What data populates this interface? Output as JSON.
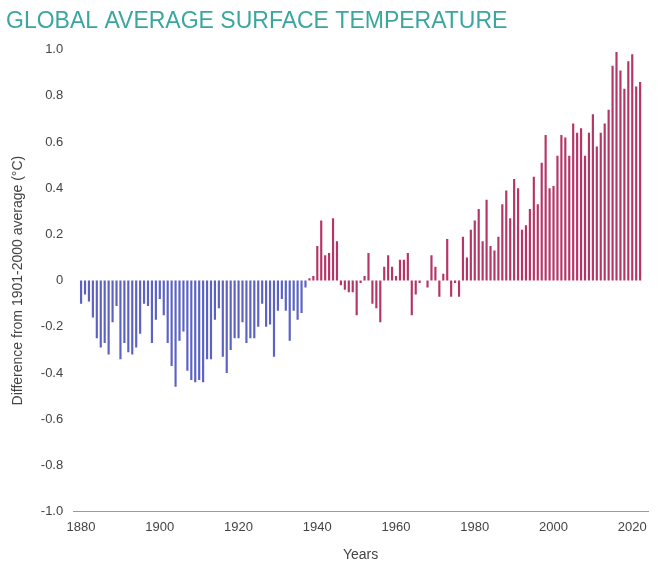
{
  "chart_data": {
    "type": "bar",
    "title": "GLOBAL AVERAGE SURFACE TEMPERATURE",
    "x_label": "Years",
    "y_label": "Difference from 1901-2000 average (°C)",
    "x": [
      1880,
      1881,
      1882,
      1883,
      1884,
      1885,
      1886,
      1887,
      1888,
      1889,
      1890,
      1891,
      1892,
      1893,
      1894,
      1895,
      1896,
      1897,
      1898,
      1899,
      1900,
      1901,
      1902,
      1903,
      1904,
      1905,
      1906,
      1907,
      1908,
      1909,
      1910,
      1911,
      1912,
      1913,
      1914,
      1915,
      1916,
      1917,
      1918,
      1919,
      1920,
      1921,
      1922,
      1923,
      1924,
      1925,
      1926,
      1927,
      1928,
      1929,
      1930,
      1931,
      1932,
      1933,
      1934,
      1935,
      1936,
      1937,
      1938,
      1939,
      1940,
      1941,
      1942,
      1943,
      1944,
      1945,
      1946,
      1947,
      1948,
      1949,
      1950,
      1951,
      1952,
      1953,
      1954,
      1955,
      1956,
      1957,
      1958,
      1959,
      1960,
      1961,
      1962,
      1963,
      1964,
      1965,
      1966,
      1967,
      1968,
      1969,
      1970,
      1971,
      1972,
      1973,
      1974,
      1975,
      1976,
      1977,
      1978,
      1979,
      1980,
      1981,
      1982,
      1983,
      1984,
      1985,
      1986,
      1987,
      1988,
      1989,
      1990,
      1991,
      1992,
      1993,
      1994,
      1995,
      1996,
      1997,
      1998,
      1999,
      2000,
      2001,
      2002,
      2003,
      2004,
      2005,
      2006,
      2007,
      2008,
      2009,
      2010,
      2011,
      2012,
      2013,
      2014,
      2015,
      2016,
      2017,
      2018,
      2019,
      2020,
      2021,
      2022
    ],
    "values": [
      -0.1,
      -0.06,
      -0.09,
      -0.16,
      -0.25,
      -0.29,
      -0.27,
      -0.32,
      -0.18,
      -0.11,
      -0.34,
      -0.27,
      -0.31,
      -0.32,
      -0.29,
      -0.23,
      -0.1,
      -0.11,
      -0.27,
      -0.17,
      -0.08,
      -0.15,
      -0.27,
      -0.37,
      -0.46,
      -0.26,
      -0.22,
      -0.39,
      -0.43,
      -0.44,
      -0.43,
      -0.44,
      -0.34,
      -0.34,
      -0.17,
      -0.12,
      -0.33,
      -0.4,
      -0.3,
      -0.25,
      -0.25,
      -0.18,
      -0.27,
      -0.25,
      -0.25,
      -0.2,
      -0.1,
      -0.2,
      -0.19,
      -0.33,
      -0.13,
      -0.08,
      -0.13,
      -0.26,
      -0.13,
      -0.17,
      -0.14,
      -0.03,
      0.01,
      0.02,
      0.15,
      0.26,
      0.11,
      0.12,
      0.27,
      0.17,
      -0.02,
      -0.04,
      -0.05,
      -0.05,
      -0.15,
      -0.01,
      0.02,
      0.12,
      -0.1,
      -0.12,
      -0.18,
      0.06,
      0.11,
      0.06,
      0.02,
      0.09,
      0.09,
      0.12,
      -0.15,
      -0.06,
      -0.01,
      0,
      -0.03,
      0.11,
      0.06,
      -0.07,
      0.03,
      0.18,
      -0.07,
      -0.01,
      -0.07,
      0.19,
      0.1,
      0.22,
      0.26,
      0.31,
      0.17,
      0.35,
      0.15,
      0.13,
      0.19,
      0.33,
      0.39,
      0.27,
      0.44,
      0.4,
      0.22,
      0.24,
      0.31,
      0.45,
      0.33,
      0.51,
      0.63,
      0.4,
      0.41,
      0.54,
      0.63,
      0.62,
      0.54,
      0.68,
      0.64,
      0.66,
      0.54,
      0.64,
      0.72,
      0.58,
      0.64,
      0.68,
      0.74,
      0.93,
      0.99,
      0.91,
      0.83,
      0.95,
      0.98,
      0.84,
      0.86
    ],
    "colors": [
      "#5b62c4",
      "#5b62c4",
      "#5b62c4",
      "#5b62c4",
      "#5b62c4",
      "#5b62c4",
      "#5b62c4",
      "#5b62c4",
      "#5b62c4",
      "#5b62c4",
      "#5b62c4",
      "#5b62c4",
      "#5b62c4",
      "#5b62c4",
      "#5b62c4",
      "#5b62c4",
      "#5b62c4",
      "#5b62c4",
      "#5b62c4",
      "#5b62c4",
      "#5b62c4",
      "#5b62c4",
      "#5b62c4",
      "#5b62c4",
      "#5b62c4",
      "#5b62c4",
      "#5b62c4",
      "#5b62c4",
      "#5b62c4",
      "#5b62c4",
      "#5b62c4",
      "#5b62c4",
      "#5b62c4",
      "#5b62c4",
      "#5b62c4",
      "#5b62c4",
      "#5b62c4",
      "#5b62c4",
      "#5b62c4",
      "#5b62c4",
      "#5b62c4",
      "#5b62c4",
      "#5b62c4",
      "#5b62c4",
      "#5b62c4",
      "#5b62c4",
      "#5b62c4",
      "#5b62c4",
      "#5b62c4",
      "#5b62c4",
      "#5b62c4",
      "#5b62c4",
      "#5b62c4",
      "#5b62c4",
      "#5b62c4",
      "#5b62c4",
      "#5b62c4",
      "#5b62c4",
      "#b53567",
      "#b53567",
      "#b53567",
      "#b53567",
      "#b53567",
      "#b53567",
      "#b53567",
      "#b53567",
      "#b53567",
      "#b53567",
      "#b53567",
      "#b53567",
      "#b53567",
      "#b53567",
      "#b53567",
      "#b53567",
      "#b53567",
      "#b53567",
      "#b53567",
      "#b53567",
      "#b53567",
      "#b53567",
      "#b53567",
      "#b53567",
      "#b53567",
      "#b53567",
      "#b53567",
      "#b53567",
      "#b53567",
      "#b53567",
      "#b53567",
      "#b53567",
      "#b53567",
      "#b53567",
      "#b53567",
      "#b53567",
      "#b53567",
      "#b53567",
      "#b53567",
      "#b53567",
      "#b53567",
      "#b53567",
      "#b53567",
      "#b53567",
      "#b53567",
      "#b53567",
      "#b53567",
      "#b53567",
      "#b53567",
      "#b53567",
      "#b53567",
      "#b53567",
      "#b53567",
      "#b53567",
      "#b53567",
      "#b53567",
      "#b53567",
      "#b53567",
      "#b53567",
      "#b53567",
      "#b53567",
      "#b53567",
      "#b53567",
      "#b53567",
      "#b53567",
      "#b53567",
      "#b53567",
      "#b53567",
      "#b53567",
      "#b53567",
      "#b53567",
      "#b53567",
      "#b53567",
      "#b53567",
      "#b53567",
      "#b53567",
      "#b53567",
      "#b53567",
      "#b53567",
      "#b53567",
      "#b53567",
      "#b53567",
      "#b53567",
      "#b53567",
      "#b53567"
    ],
    "xlim": [
      1878,
      2024
    ],
    "xticks": [
      1880,
      1900,
      1920,
      1940,
      1960,
      1980,
      2000,
      2020
    ],
    "ylim": [
      -1.0,
      1.0
    ],
    "yticks": [
      {
        "value": -1.0,
        "label": "-1.0"
      },
      -0.8,
      -0.6,
      -0.4,
      -0.2,
      0,
      0.2,
      0.4,
      0.6,
      0.8,
      {
        "value": 1.0,
        "label": "1.0"
      }
    ],
    "grid": false
  }
}
